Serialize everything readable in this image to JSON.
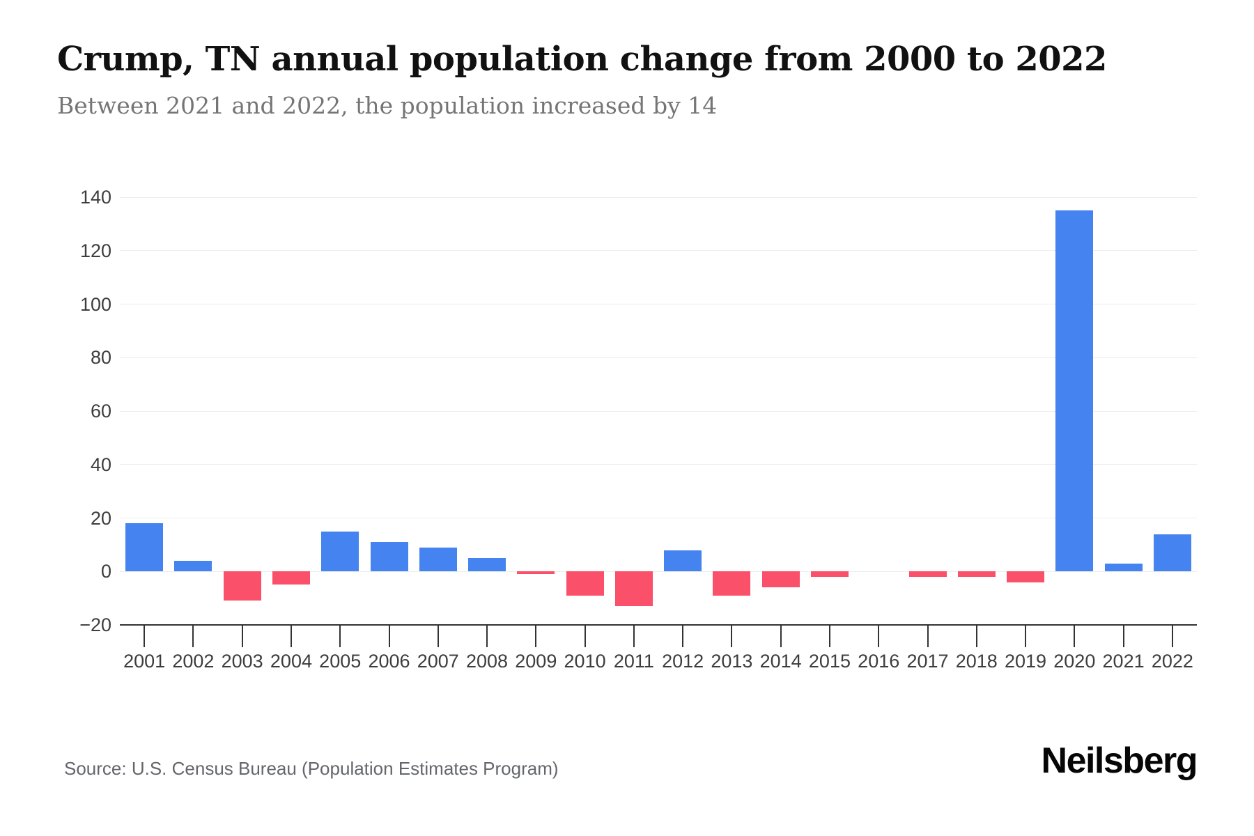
{
  "header": {
    "title": "Crump, TN annual population change from 2000 to 2022",
    "subtitle": "Between 2021 and 2022, the population increased by 14"
  },
  "chart_data": {
    "type": "bar",
    "title": "Crump, TN annual population change from 2000 to 2022",
    "subtitle": "Between 2021 and 2022, the population increased by 14",
    "xlabel": "",
    "ylabel": "",
    "categories": [
      "2001",
      "2002",
      "2003",
      "2004",
      "2005",
      "2006",
      "2007",
      "2008",
      "2009",
      "2010",
      "2011",
      "2012",
      "2013",
      "2014",
      "2015",
      "2016",
      "2017",
      "2018",
      "2019",
      "2020",
      "2021",
      "2022"
    ],
    "values": [
      18,
      4,
      -11,
      -5,
      15,
      11,
      9,
      5,
      -1,
      -9,
      -13,
      8,
      -9,
      -6,
      -2,
      0,
      -2,
      -2,
      -4,
      135,
      3,
      14
    ],
    "ylim": [
      -20,
      140
    ],
    "ytick_values": [
      140,
      120,
      100,
      80,
      60,
      40,
      20,
      0,
      -20
    ],
    "ytick_labels": [
      "140",
      "120",
      "100",
      "80",
      "60",
      "40",
      "20",
      "0",
      "−20"
    ],
    "grid": true,
    "legend_position": "none",
    "colors": {
      "positive": "#4584F0",
      "negative": "#FA5069",
      "gridline": "#EDEDED",
      "axis_line": "#333333",
      "tick_label": "#3D3D3D"
    }
  },
  "footer": {
    "source": "Source: U.S. Census Bureau (Population Estimates Program)",
    "brand": "Neilsberg"
  }
}
